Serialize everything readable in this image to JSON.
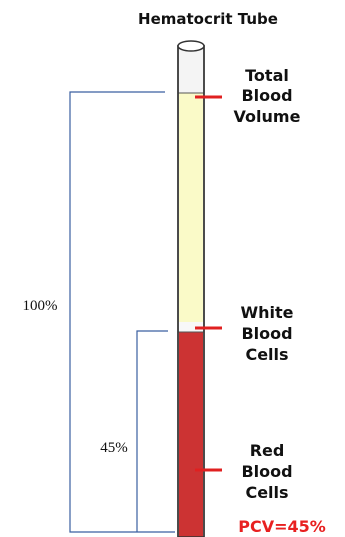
{
  "title": "Hematocrit Tube",
  "labels": [
    {
      "lines": [
        "Total",
        "Blood",
        "Volume"
      ]
    },
    {
      "lines": [
        "White",
        "Blood",
        "Cells"
      ]
    },
    {
      "lines": [
        "Red",
        "Blood",
        "Cells"
      ]
    }
  ],
  "pcv": "PCV=45%",
  "brackets": [
    "100%",
    "45%"
  ]
}
